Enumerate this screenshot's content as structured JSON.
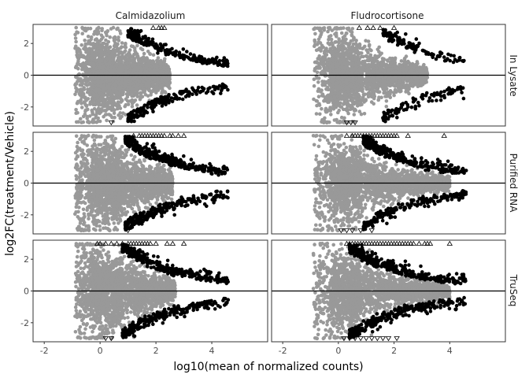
{
  "chart_data": {
    "type": "scatter",
    "layout": "facet-grid",
    "xlabel": "log10(mean of normalized counts)",
    "ylabel": "log2FC(treatment/Vehicle)",
    "xlim": [
      -2.4,
      6.0
    ],
    "ylim": [
      -3.2,
      3.2
    ],
    "x_ticks": [
      -2,
      0,
      2,
      4
    ],
    "y_ticks": [
      -2,
      0,
      2
    ],
    "hline": 0,
    "column_facets": [
      "Calmidazolium",
      "Fludrocortisone"
    ],
    "row_facets": [
      "In Lysate",
      "Purified RNA",
      "TruSeq"
    ],
    "colors": {
      "not_significant": "#999999",
      "significant": "#000000",
      "panel_border": "#333333",
      "zero_line": "#000000"
    },
    "series": [
      {
        "role": "not_significant",
        "color": "#999999",
        "marker": "circle"
      },
      {
        "role": "significant",
        "color": "#000000",
        "marker": "circle"
      },
      {
        "role": "clipped_above",
        "marker": "triangle-up",
        "y": 3.0
      },
      {
        "role": "clipped_below",
        "marker": "triangle-down",
        "y": -3.0
      }
    ],
    "panels": [
      {
        "row": 0,
        "col": 0,
        "sig_x_start": 1.0,
        "sig_density": 0.85,
        "grey_x_end": 2.5,
        "clip_up": [
          1.9,
          2.1,
          2.2,
          2.3
        ],
        "clip_down": [
          0.4
        ]
      },
      {
        "row": 0,
        "col": 1,
        "sig_x_start": 1.6,
        "sig_density": 0.45,
        "grey_x_end": 3.2,
        "clip_up": [
          0.75,
          1.05,
          1.25,
          1.5,
          2.0
        ],
        "clip_down": [
          0.3,
          0.45,
          0.6
        ]
      },
      {
        "row": 1,
        "col": 0,
        "sig_x_start": 0.9,
        "sig_density": 1.2,
        "grey_x_end": 2.6,
        "clip_up": [
          1.2,
          1.4,
          1.5,
          1.6,
          1.7,
          1.8,
          1.9,
          2.0,
          2.1,
          2.2,
          2.3,
          2.5,
          2.6,
          2.8,
          3.0
        ],
        "clip_down": [
          1.0
        ]
      },
      {
        "row": 1,
        "col": 1,
        "sig_x_start": 0.9,
        "sig_density": 0.9,
        "grey_x_end": 4.0,
        "clip_up": [
          0.3,
          0.5,
          0.6,
          0.7,
          0.8,
          0.9,
          1.0,
          1.1,
          1.2,
          1.3,
          1.4,
          1.5,
          1.6,
          1.7,
          1.8,
          1.9,
          2.0,
          2.1,
          2.5,
          3.8
        ],
        "clip_down": [
          0.1,
          0.3,
          0.5,
          0.8,
          1.2
        ]
      },
      {
        "row": 2,
        "col": 0,
        "sig_x_start": 0.8,
        "sig_density": 1.1,
        "grey_x_end": 2.7,
        "clip_up": [
          -0.1,
          0.0,
          0.2,
          0.4,
          0.6,
          0.8,
          1.0,
          1.1,
          1.2,
          1.3,
          1.4,
          1.5,
          1.6,
          1.7,
          1.8,
          2.0,
          2.4,
          2.6,
          3.0
        ],
        "clip_down": [
          0.2,
          0.4
        ]
      },
      {
        "row": 2,
        "col": 1,
        "sig_x_start": 0.4,
        "sig_density": 1.3,
        "grey_x_end": 4.0,
        "clip_up": [
          0.3,
          0.4,
          0.5,
          0.6,
          0.7,
          0.8,
          0.9,
          1.0,
          1.1,
          1.2,
          1.3,
          1.4,
          1.5,
          1.6,
          1.7,
          1.8,
          1.9,
          2.0,
          2.1,
          2.2,
          2.3,
          2.4,
          2.5,
          2.6,
          2.7,
          2.9,
          3.1,
          3.2,
          3.3,
          4.0
        ],
        "clip_down": [
          0.2,
          0.4,
          0.6,
          0.8,
          1.0,
          1.2,
          1.4,
          1.6,
          1.8,
          2.1
        ]
      }
    ]
  }
}
